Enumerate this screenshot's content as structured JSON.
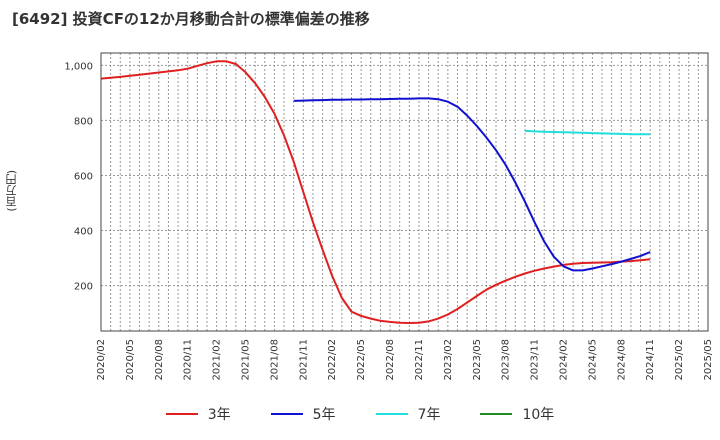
{
  "page": {
    "title": "[6492]  投資CFの12か月移動合計の標準偏差の推移",
    "ylabel": "(百万円)"
  },
  "chart_data": {
    "type": "line",
    "title": "[6492]  投資CFの12か月移動合計の標準偏差の推移",
    "xlabel": "",
    "ylabel": "(百万円)",
    "ylim": [
      35,
      1045
    ],
    "yticks": [
      200,
      400,
      600,
      800,
      1000
    ],
    "ytick_labels": [
      "200",
      "400",
      "600",
      "800",
      "1,000"
    ],
    "xticks": [
      "2020/02",
      "2020/05",
      "2020/08",
      "2020/11",
      "2021/02",
      "2021/05",
      "2021/08",
      "2021/11",
      "2022/02",
      "2022/05",
      "2022/08",
      "2022/11",
      "2023/02",
      "2023/05",
      "2023/08",
      "2023/11",
      "2024/02",
      "2024/05",
      "2024/08",
      "2024/11",
      "2025/02",
      "2025/05"
    ],
    "grid": true,
    "legend_position": "bottom",
    "series": [
      {
        "name": "3年",
        "color": "#e02020",
        "points": [
          [
            "2020/02",
            952
          ],
          [
            "2020/03",
            955
          ],
          [
            "2020/04",
            958
          ],
          [
            "2020/05",
            962
          ],
          [
            "2020/06",
            966
          ],
          [
            "2020/07",
            970
          ],
          [
            "2020/08",
            974
          ],
          [
            "2020/09",
            978
          ],
          [
            "2020/10",
            982
          ],
          [
            "2020/11",
            988
          ],
          [
            "2020/12",
            998
          ],
          [
            "2021/01",
            1008
          ],
          [
            "2021/02",
            1015
          ],
          [
            "2021/03",
            1015
          ],
          [
            "2021/04",
            1005
          ],
          [
            "2021/05",
            975
          ],
          [
            "2021/06",
            935
          ],
          [
            "2021/07",
            885
          ],
          [
            "2021/08",
            825
          ],
          [
            "2021/09",
            745
          ],
          [
            "2021/10",
            650
          ],
          [
            "2021/11",
            540
          ],
          [
            "2021/12",
            430
          ],
          [
            "2022/01",
            330
          ],
          [
            "2022/02",
            235
          ],
          [
            "2022/03",
            155
          ],
          [
            "2022/04",
            105
          ],
          [
            "2022/05",
            90
          ],
          [
            "2022/06",
            80
          ],
          [
            "2022/07",
            72
          ],
          [
            "2022/08",
            68
          ],
          [
            "2022/09",
            65
          ],
          [
            "2022/10",
            64
          ],
          [
            "2022/11",
            65
          ],
          [
            "2022/12",
            70
          ],
          [
            "2023/01",
            80
          ],
          [
            "2023/02",
            95
          ],
          [
            "2023/03",
            115
          ],
          [
            "2023/04",
            138
          ],
          [
            "2023/05",
            162
          ],
          [
            "2023/06",
            185
          ],
          [
            "2023/07",
            203
          ],
          [
            "2023/08",
            218
          ],
          [
            "2023/09",
            232
          ],
          [
            "2023/10",
            244
          ],
          [
            "2023/11",
            254
          ],
          [
            "2023/12",
            262
          ],
          [
            "2024/01",
            269
          ],
          [
            "2024/02",
            275
          ],
          [
            "2024/03",
            279
          ],
          [
            "2024/04",
            282
          ],
          [
            "2024/05",
            283
          ],
          [
            "2024/06",
            284
          ],
          [
            "2024/07",
            285
          ],
          [
            "2024/08",
            287
          ],
          [
            "2024/09",
            289
          ],
          [
            "2024/10",
            292
          ],
          [
            "2024/11",
            296
          ]
        ]
      },
      {
        "name": "5年",
        "color": "#1010d0",
        "points": [
          [
            "2021/10",
            871
          ],
          [
            "2021/11",
            872
          ],
          [
            "2021/12",
            873
          ],
          [
            "2022/01",
            874
          ],
          [
            "2022/02",
            875
          ],
          [
            "2022/03",
            875
          ],
          [
            "2022/04",
            876
          ],
          [
            "2022/05",
            876
          ],
          [
            "2022/06",
            877
          ],
          [
            "2022/07",
            877
          ],
          [
            "2022/08",
            878
          ],
          [
            "2022/09",
            879
          ],
          [
            "2022/10",
            879
          ],
          [
            "2022/11",
            880
          ],
          [
            "2022/12",
            880
          ],
          [
            "2023/01",
            877
          ],
          [
            "2023/02",
            868
          ],
          [
            "2023/03",
            850
          ],
          [
            "2023/04",
            818
          ],
          [
            "2023/05",
            780
          ],
          [
            "2023/06",
            738
          ],
          [
            "2023/07",
            692
          ],
          [
            "2023/08",
            638
          ],
          [
            "2023/09",
            575
          ],
          [
            "2023/10",
            505
          ],
          [
            "2023/11",
            430
          ],
          [
            "2023/12",
            360
          ],
          [
            "2024/01",
            305
          ],
          [
            "2024/02",
            270
          ],
          [
            "2024/03",
            255
          ],
          [
            "2024/04",
            255
          ],
          [
            "2024/05",
            262
          ],
          [
            "2024/06",
            270
          ],
          [
            "2024/07",
            278
          ],
          [
            "2024/08",
            287
          ],
          [
            "2024/09",
            297
          ],
          [
            "2024/10",
            308
          ],
          [
            "2024/11",
            322
          ]
        ]
      },
      {
        "name": "7年",
        "color": "#22dddd",
        "points": [
          [
            "2023/10",
            762
          ],
          [
            "2023/11",
            760
          ],
          [
            "2023/12",
            759
          ],
          [
            "2024/01",
            758
          ],
          [
            "2024/02",
            757
          ],
          [
            "2024/03",
            756
          ],
          [
            "2024/04",
            755
          ],
          [
            "2024/05",
            754
          ],
          [
            "2024/06",
            753
          ],
          [
            "2024/07",
            752
          ],
          [
            "2024/08",
            751
          ],
          [
            "2024/09",
            750
          ],
          [
            "2024/10",
            750
          ],
          [
            "2024/11",
            750
          ]
        ]
      },
      {
        "name": "10年",
        "color": "#228b22",
        "points": []
      }
    ]
  }
}
